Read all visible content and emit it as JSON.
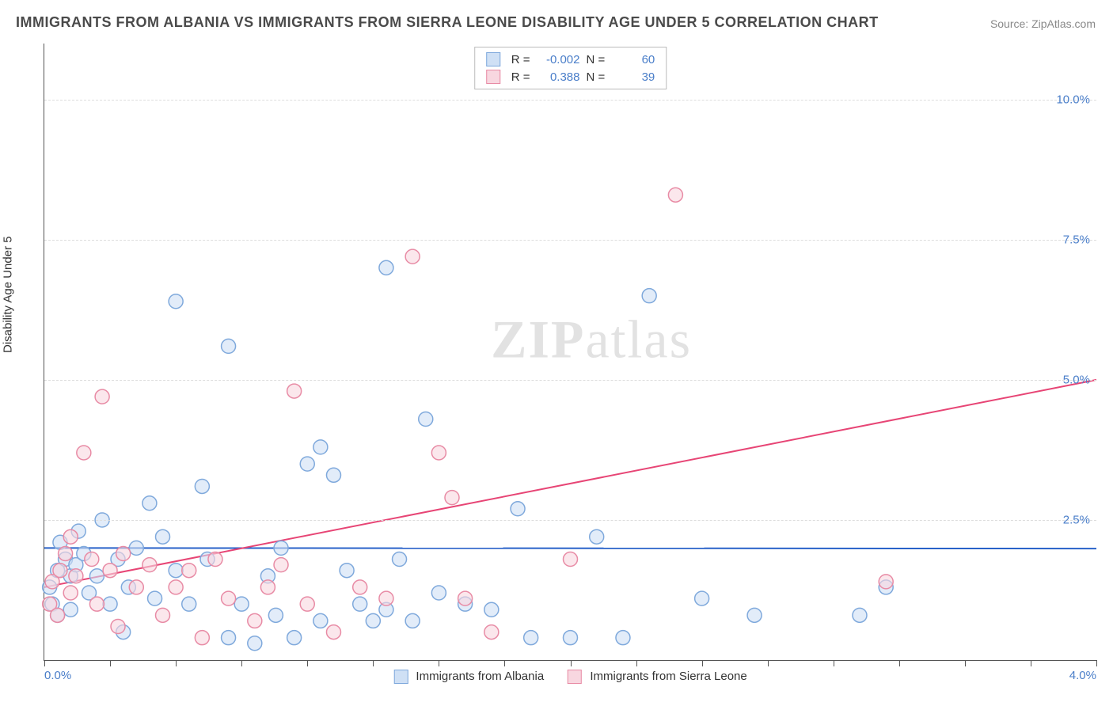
{
  "title": "IMMIGRANTS FROM ALBANIA VS IMMIGRANTS FROM SIERRA LEONE DISABILITY AGE UNDER 5 CORRELATION CHART",
  "source": "Source: ZipAtlas.com",
  "ylabel": "Disability Age Under 5",
  "watermark_a": "ZIP",
  "watermark_b": "atlas",
  "chart": {
    "type": "scatter",
    "xlim": [
      0.0,
      4.0
    ],
    "ylim": [
      0.0,
      11.0
    ],
    "xtick_count": 17,
    "xtick_step": 0.25,
    "xtick_label_left": "0.0%",
    "xtick_label_right": "4.0%",
    "yticks": [
      2.5,
      5.0,
      7.5,
      10.0
    ],
    "ytick_labels": [
      "2.5%",
      "5.0%",
      "7.5%",
      "10.0%"
    ],
    "grid_color": "#dddddd",
    "background_color": "#ffffff",
    "axis_color": "#555555",
    "marker_radius": 9,
    "marker_stroke_width": 1.5,
    "line_width": 2,
    "series": [
      {
        "name": "Immigrants from Albania",
        "fill": "#cfe0f5",
        "stroke": "#7fa9dc",
        "line_color": "#2962c9",
        "r_value": "-0.002",
        "n_value": "60",
        "trend_y_at_x0": 2.0,
        "trend_y_at_xmax": 1.99,
        "points": [
          [
            0.02,
            1.3
          ],
          [
            0.03,
            1.0
          ],
          [
            0.05,
            0.8
          ],
          [
            0.05,
            1.6
          ],
          [
            0.06,
            2.1
          ],
          [
            0.08,
            1.8
          ],
          [
            0.1,
            0.9
          ],
          [
            0.1,
            1.5
          ],
          [
            0.12,
            1.7
          ],
          [
            0.13,
            2.3
          ],
          [
            0.15,
            1.9
          ],
          [
            0.17,
            1.2
          ],
          [
            0.2,
            1.5
          ],
          [
            0.22,
            2.5
          ],
          [
            0.25,
            1.0
          ],
          [
            0.28,
            1.8
          ],
          [
            0.3,
            0.5
          ],
          [
            0.32,
            1.3
          ],
          [
            0.35,
            2.0
          ],
          [
            0.4,
            2.8
          ],
          [
            0.42,
            1.1
          ],
          [
            0.45,
            2.2
          ],
          [
            0.5,
            6.4
          ],
          [
            0.5,
            1.6
          ],
          [
            0.55,
            1.0
          ],
          [
            0.6,
            3.1
          ],
          [
            0.62,
            1.8
          ],
          [
            0.7,
            5.6
          ],
          [
            0.7,
            0.4
          ],
          [
            0.75,
            1.0
          ],
          [
            0.8,
            0.3
          ],
          [
            0.85,
            1.5
          ],
          [
            0.88,
            0.8
          ],
          [
            0.9,
            2.0
          ],
          [
            0.95,
            0.4
          ],
          [
            1.0,
            3.5
          ],
          [
            1.05,
            0.7
          ],
          [
            1.05,
            3.8
          ],
          [
            1.1,
            3.3
          ],
          [
            1.15,
            1.6
          ],
          [
            1.2,
            1.0
          ],
          [
            1.25,
            0.7
          ],
          [
            1.3,
            7.0
          ],
          [
            1.3,
            0.9
          ],
          [
            1.35,
            1.8
          ],
          [
            1.4,
            0.7
          ],
          [
            1.45,
            4.3
          ],
          [
            1.5,
            1.2
          ],
          [
            1.6,
            1.0
          ],
          [
            1.7,
            0.9
          ],
          [
            1.8,
            2.7
          ],
          [
            1.85,
            0.4
          ],
          [
            2.0,
            0.4
          ],
          [
            2.1,
            2.2
          ],
          [
            2.2,
            0.4
          ],
          [
            2.3,
            6.5
          ],
          [
            2.5,
            1.1
          ],
          [
            2.7,
            0.8
          ],
          [
            3.1,
            0.8
          ],
          [
            3.2,
            1.3
          ]
        ]
      },
      {
        "name": "Immigrants from Sierra Leone",
        "fill": "#f8d7e0",
        "stroke": "#e88ba5",
        "line_color": "#e74575",
        "r_value": "0.388",
        "n_value": "39",
        "trend_y_at_x0": 1.3,
        "trend_y_at_xmax": 5.0,
        "points": [
          [
            0.02,
            1.0
          ],
          [
            0.03,
            1.4
          ],
          [
            0.05,
            0.8
          ],
          [
            0.06,
            1.6
          ],
          [
            0.08,
            1.9
          ],
          [
            0.1,
            1.2
          ],
          [
            0.1,
            2.2
          ],
          [
            0.12,
            1.5
          ],
          [
            0.15,
            3.7
          ],
          [
            0.18,
            1.8
          ],
          [
            0.2,
            1.0
          ],
          [
            0.22,
            4.7
          ],
          [
            0.25,
            1.6
          ],
          [
            0.28,
            0.6
          ],
          [
            0.3,
            1.9
          ],
          [
            0.35,
            1.3
          ],
          [
            0.4,
            1.7
          ],
          [
            0.45,
            0.8
          ],
          [
            0.5,
            1.3
          ],
          [
            0.55,
            1.6
          ],
          [
            0.6,
            0.4
          ],
          [
            0.65,
            1.8
          ],
          [
            0.7,
            1.1
          ],
          [
            0.8,
            0.7
          ],
          [
            0.85,
            1.3
          ],
          [
            0.9,
            1.7
          ],
          [
            0.95,
            4.8
          ],
          [
            1.0,
            1.0
          ],
          [
            1.1,
            0.5
          ],
          [
            1.2,
            1.3
          ],
          [
            1.3,
            1.1
          ],
          [
            1.4,
            7.2
          ],
          [
            1.5,
            3.7
          ],
          [
            1.55,
            2.9
          ],
          [
            1.6,
            1.1
          ],
          [
            2.0,
            1.8
          ],
          [
            2.4,
            8.3
          ],
          [
            3.2,
            1.4
          ],
          [
            1.7,
            0.5
          ]
        ]
      }
    ]
  },
  "legend_top_labels": {
    "r": "R =",
    "n": "N ="
  }
}
